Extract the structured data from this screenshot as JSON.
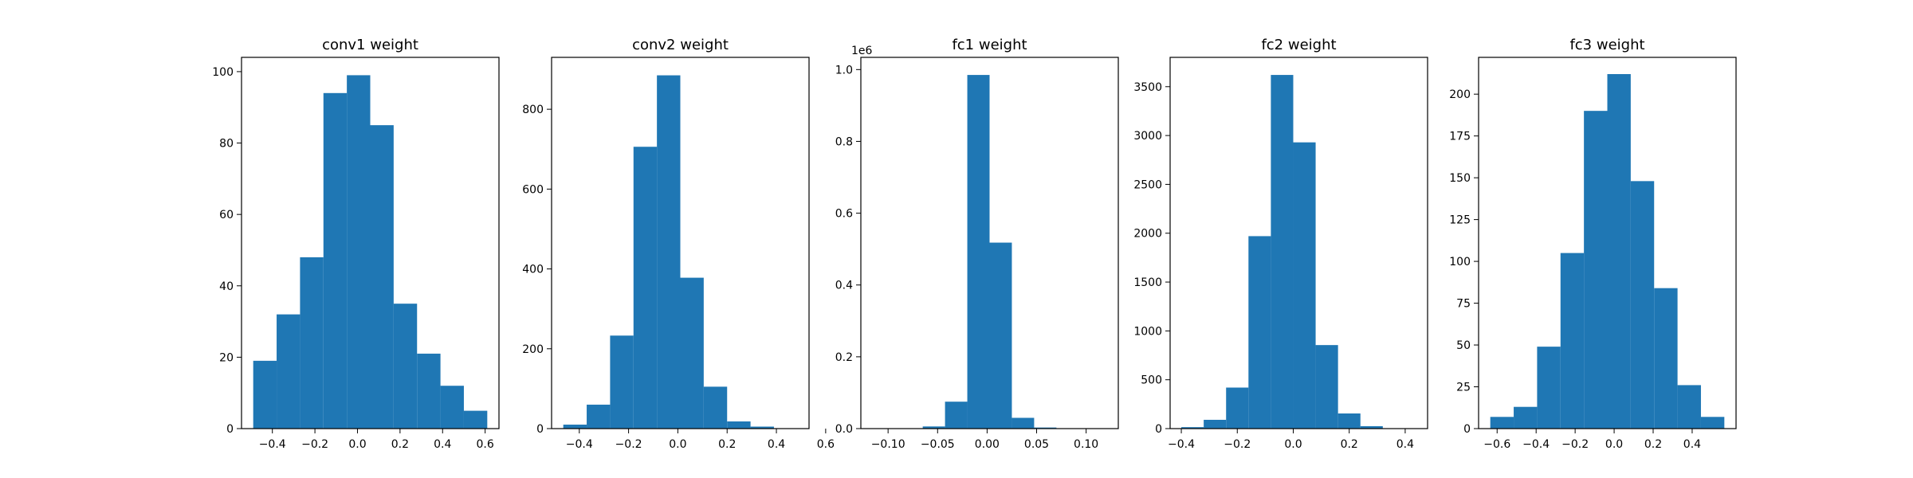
{
  "figure": {
    "bar_color": "#1f77b4",
    "background": "#ffffff"
  },
  "chart_data": [
    {
      "type": "bar",
      "title": "conv1 weight",
      "xlabel": "",
      "ylabel": "",
      "bin_edges": [
        -0.49,
        -0.38,
        -0.27,
        -0.16,
        -0.05,
        0.06,
        0.17,
        0.28,
        0.39,
        0.5,
        0.61
      ],
      "values": [
        19,
        32,
        48,
        94,
        99,
        85,
        35,
        21,
        12,
        5
      ],
      "xlim": [
        -0.545,
        0.665
      ],
      "ylim": [
        0,
        104
      ],
      "xticks": [
        -0.4,
        -0.2,
        0.0,
        0.2,
        0.4,
        0.6
      ],
      "xtick_labels": [
        "−0.4",
        "−0.2",
        "0.0",
        "0.2",
        "0.4",
        "0.6"
      ],
      "yticks": [
        0,
        20,
        40,
        60,
        80,
        100
      ],
      "ytick_labels": [
        "0",
        "20",
        "40",
        "60",
        "80",
        "100"
      ],
      "offset_text": "",
      "grid": false
    },
    {
      "type": "bar",
      "title": "conv2 weight",
      "xlabel": "",
      "ylabel": "",
      "bin_edges": [
        -0.465,
        -0.37,
        -0.275,
        -0.18,
        -0.085,
        0.01,
        0.105,
        0.2,
        0.295,
        0.39,
        0.485
      ],
      "values": [
        10,
        60,
        233,
        706,
        885,
        378,
        105,
        18,
        5,
        0
      ],
      "xlim": [
        -0.5125,
        0.5325
      ],
      "ylim": [
        0,
        930
      ],
      "xticks": [
        -0.4,
        -0.2,
        0.0,
        0.2,
        0.4,
        0.6
      ],
      "xtick_labels": [
        "−0.4",
        "−0.2",
        "0.0",
        "0.2",
        "0.4",
        "0.6"
      ],
      "yticks": [
        0,
        200,
        400,
        600,
        800
      ],
      "ytick_labels": [
        "0",
        "200",
        "400",
        "600",
        "800"
      ],
      "offset_text": "",
      "grid": false
    },
    {
      "type": "bar",
      "title": "fc1 weight",
      "xlabel": "",
      "ylabel": "",
      "bin_edges": [
        -0.11,
        -0.0875,
        -0.065,
        -0.0425,
        -0.02,
        0.0025,
        0.025,
        0.0475,
        0.07,
        0.0925,
        0.115
      ],
      "values": [
        0,
        0,
        6000,
        75000,
        985000,
        518000,
        30000,
        3000,
        0,
        0
      ],
      "xlim": [
        -0.1275,
        0.1325
      ],
      "ylim": [
        0,
        1034000
      ],
      "xticks": [
        -0.1,
        -0.05,
        0.0,
        0.05,
        0.1
      ],
      "xtick_labels": [
        "−0.10",
        "−0.05",
        "0.00",
        "0.05",
        "0.10"
      ],
      "yticks": [
        0,
        200000,
        400000,
        600000,
        800000,
        1000000
      ],
      "ytick_labels": [
        "0.0",
        "0.2",
        "0.4",
        "0.6",
        "0.8",
        "1.0"
      ],
      "offset_text": "1e6",
      "grid": false
    },
    {
      "type": "bar",
      "title": "fc2 weight",
      "xlabel": "",
      "ylabel": "",
      "bin_edges": [
        -0.4,
        -0.32,
        -0.24,
        -0.16,
        -0.08,
        0.0,
        0.08,
        0.16,
        0.24,
        0.32,
        0.4
      ],
      "values": [
        15,
        90,
        420,
        1970,
        3620,
        2930,
        855,
        155,
        25,
        2
      ],
      "xlim": [
        -0.44,
        0.48
      ],
      "ylim": [
        0,
        3800
      ],
      "xticks": [
        -0.4,
        -0.2,
        0.0,
        0.2,
        0.4
      ],
      "xtick_labels": [
        "−0.4",
        "−0.2",
        "0.0",
        "0.2",
        "0.4"
      ],
      "yticks": [
        0,
        500,
        1000,
        1500,
        2000,
        2500,
        3000,
        3500
      ],
      "ytick_labels": [
        "0",
        "500",
        "1000",
        "1500",
        "2000",
        "2500",
        "3000",
        "3500"
      ],
      "offset_text": "",
      "grid": false
    },
    {
      "type": "bar",
      "title": "fc3 weight",
      "xlabel": "",
      "ylabel": "",
      "bin_edges": [
        -0.635,
        -0.515,
        -0.395,
        -0.275,
        -0.155,
        -0.035,
        0.085,
        0.205,
        0.325,
        0.445,
        0.565
      ],
      "values": [
        7,
        13,
        49,
        105,
        190,
        212,
        148,
        84,
        26,
        7
      ],
      "xlim": [
        -0.695,
        0.625
      ],
      "ylim": [
        0,
        222
      ],
      "xticks": [
        -0.6,
        -0.4,
        -0.2,
        0.0,
        0.2,
        0.4
      ],
      "xtick_labels": [
        "−0.6",
        "−0.4",
        "−0.2",
        "0.0",
        "0.2",
        "0.4"
      ],
      "yticks": [
        0,
        25,
        50,
        75,
        100,
        125,
        150,
        175,
        200
      ],
      "ytick_labels": [
        "0",
        "25",
        "50",
        "75",
        "100",
        "125",
        "150",
        "175",
        "200"
      ],
      "offset_text": "",
      "grid": false
    }
  ]
}
